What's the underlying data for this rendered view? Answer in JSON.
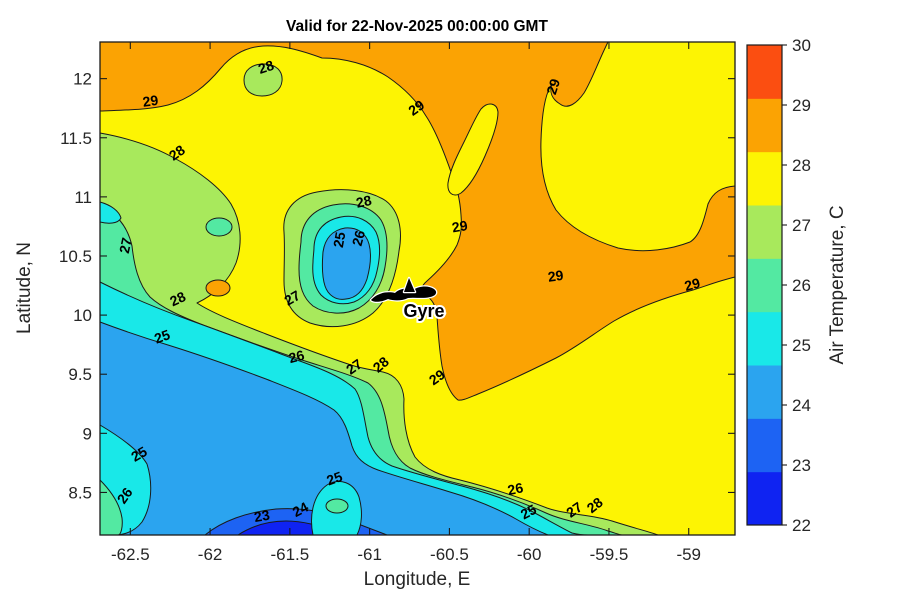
{
  "title": "Valid for 22-Nov-2025 00:00:00 GMT",
  "axes": {
    "xlabel": "Longitude, E",
    "ylabel": "Latitude, N",
    "x_ticks": [
      "-62.5",
      "-62",
      "-61.5",
      "-61",
      "-60.5",
      "-60",
      "-59.5",
      "-59"
    ],
    "y_ticks": [
      "8.5",
      "9",
      "9.5",
      "10",
      "10.5",
      "11",
      "11.5",
      "12"
    ],
    "xlim": [
      -62.69,
      -58.71
    ],
    "ylim": [
      8.14,
      12.31
    ]
  },
  "palette": {
    "c1": "#0f23f2",
    "c2": "#1d63f3",
    "c3": "#2ba4ef",
    "c4": "#19e8e8",
    "c5": "#53e9a2",
    "c6": "#a8e95c",
    "c7": "#fdf403",
    "c8": "#fba303",
    "c9": "#fb4e11"
  },
  "colorbar": {
    "label": "Air Temperature, C",
    "ticks": [
      "22",
      "23",
      "24",
      "25",
      "26",
      "27",
      "28",
      "29",
      "30"
    ],
    "range": [
      22,
      30
    ],
    "segment_colors_bottom_to_top": [
      "c1",
      "c2",
      "c3",
      "c4",
      "c5",
      "c6",
      "c7",
      "c8",
      "c9"
    ]
  },
  "annotation": {
    "label": "Gyre",
    "lon": -60.66,
    "lat": 10.04
  },
  "chart_data": {
    "type": "heatmap",
    "subtype": "filled-contour-map",
    "title": "Valid for 22-Nov-2025 00:00:00 GMT",
    "xlabel": "Longitude, E",
    "ylabel": "Latitude, N",
    "colorbar_label": "Air Temperature, C",
    "value_range_c": [
      22,
      30
    ],
    "contour_interval_c": 1,
    "labeled_levels_c": [
      23,
      24,
      25,
      26,
      27,
      28,
      29
    ],
    "xlim": [
      -62.69,
      -58.71
    ],
    "ylim": [
      8.14,
      12.31
    ],
    "grid": false,
    "contour_labels": [
      {
        "v": "29",
        "lon": -62.37,
        "lat": 11.77,
        "rot": -8
      },
      {
        "v": "28",
        "lon": -61.64,
        "lat": 12.06,
        "rot": -18
      },
      {
        "v": "29",
        "lon": -60.69,
        "lat": 11.72,
        "rot": -35
      },
      {
        "v": "29",
        "lon": -59.82,
        "lat": 11.92,
        "rot": -72
      },
      {
        "v": "28",
        "lon": -62.19,
        "lat": 11.34,
        "rot": -35
      },
      {
        "v": "28",
        "lon": -61.03,
        "lat": 10.92,
        "rot": -12
      },
      {
        "v": "27",
        "lon": -62.5,
        "lat": 10.58,
        "rot": -78
      },
      {
        "v": "25",
        "lon": -61.16,
        "lat": 10.63,
        "rot": -80
      },
      {
        "v": "26",
        "lon": -61.04,
        "lat": 10.64,
        "rot": -75
      },
      {
        "v": "29",
        "lon": -60.43,
        "lat": 10.71,
        "rot": -10
      },
      {
        "v": "29",
        "lon": -59.83,
        "lat": 10.29,
        "rot": -8
      },
      {
        "v": "29",
        "lon": -58.97,
        "lat": 10.22,
        "rot": -15
      },
      {
        "v": "28",
        "lon": -62.19,
        "lat": 10.1,
        "rot": -25
      },
      {
        "v": "27",
        "lon": -61.47,
        "lat": 10.11,
        "rot": -30
      },
      {
        "v": "25",
        "lon": -62.29,
        "lat": 9.78,
        "rot": -20
      },
      {
        "v": "26",
        "lon": -61.45,
        "lat": 9.61,
        "rot": -15
      },
      {
        "v": "27",
        "lon": -61.08,
        "lat": 9.53,
        "rot": -35
      },
      {
        "v": "28",
        "lon": -60.91,
        "lat": 9.55,
        "rot": -40
      },
      {
        "v": "29",
        "lon": -60.56,
        "lat": 9.44,
        "rot": -35
      },
      {
        "v": "25",
        "lon": -62.43,
        "lat": 8.79,
        "rot": -30
      },
      {
        "v": "26",
        "lon": -62.51,
        "lat": 8.45,
        "rot": -55
      },
      {
        "v": "25",
        "lon": -61.21,
        "lat": 8.58,
        "rot": -20
      },
      {
        "v": "24",
        "lon": -61.42,
        "lat": 8.32,
        "rot": -28
      },
      {
        "v": "23",
        "lon": -61.67,
        "lat": 8.26,
        "rot": -10
      },
      {
        "v": "26",
        "lon": -60.08,
        "lat": 8.49,
        "rot": -12
      },
      {
        "v": "25",
        "lon": -59.99,
        "lat": 8.3,
        "rot": -28
      },
      {
        "v": "27",
        "lon": -59.7,
        "lat": 8.32,
        "rot": -35
      },
      {
        "v": "28",
        "lon": -59.57,
        "lat": 8.36,
        "rot": -38
      }
    ],
    "annotations": [
      {
        "text": "Gyre",
        "lon": -60.66,
        "lat": 10.04,
        "marker": "island-and-arrow"
      }
    ]
  }
}
